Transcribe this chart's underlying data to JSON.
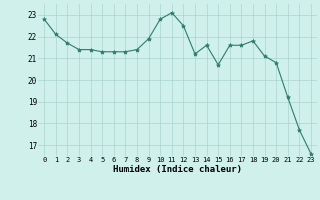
{
  "x": [
    0,
    1,
    2,
    3,
    4,
    5,
    6,
    7,
    8,
    9,
    10,
    11,
    12,
    13,
    14,
    15,
    16,
    17,
    18,
    19,
    20,
    21,
    22,
    23
  ],
  "y": [
    22.8,
    22.1,
    21.7,
    21.4,
    21.4,
    21.3,
    21.3,
    21.3,
    21.4,
    21.9,
    22.8,
    23.1,
    22.5,
    21.2,
    21.6,
    20.7,
    21.6,
    21.6,
    21.8,
    21.1,
    20.8,
    19.2,
    17.7,
    16.6
  ],
  "line_color": "#2e7d6e",
  "marker": "*",
  "marker_size": 3,
  "bg_color": "#cff0eb",
  "grid_color": "#aad4ce",
  "xlabel": "Humidex (Indice chaleur)",
  "ylim": [
    16.5,
    23.5
  ],
  "xlim": [
    -0.5,
    23.5
  ],
  "yticks": [
    17,
    18,
    19,
    20,
    21,
    22,
    23
  ],
  "xticks": [
    0,
    1,
    2,
    3,
    4,
    5,
    6,
    7,
    8,
    9,
    10,
    11,
    12,
    13,
    14,
    15,
    16,
    17,
    18,
    19,
    20,
    21,
    22,
    23
  ]
}
